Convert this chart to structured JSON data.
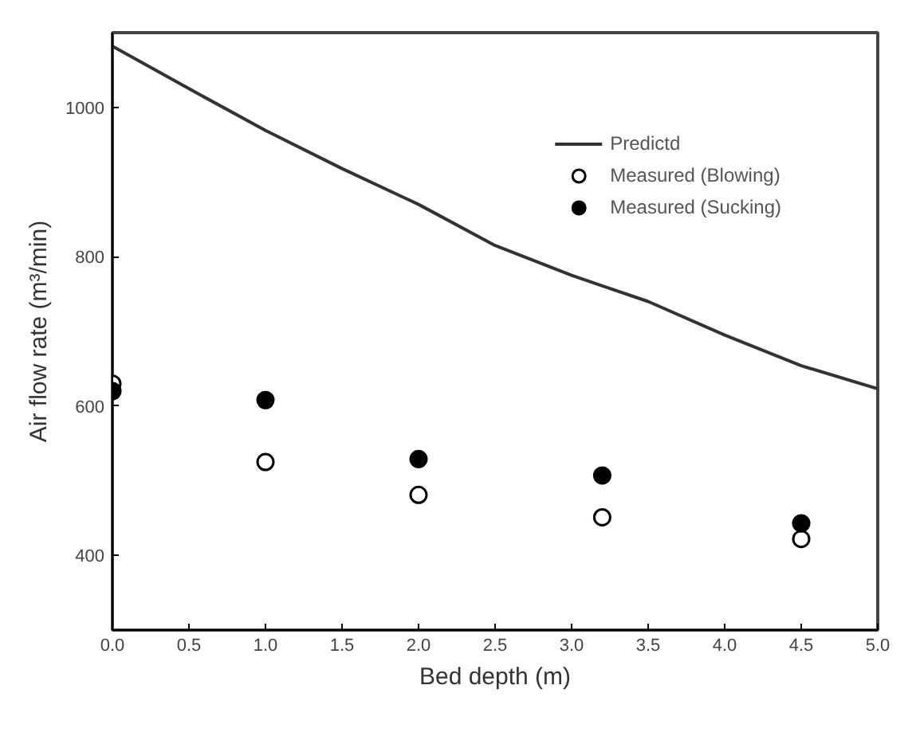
{
  "chart_data": {
    "type": "scatter",
    "xlabel": "Bed depth (m)",
    "ylabel": "Air flow rate (m³/min)",
    "xlim": [
      0,
      5
    ],
    "ylim": [
      300,
      1100
    ],
    "xticks": [
      {
        "value": 0,
        "label": "0.0"
      },
      {
        "value": 0.5,
        "label": "0.5"
      },
      {
        "value": 1,
        "label": "1.0"
      },
      {
        "value": 1.5,
        "label": "1.5"
      },
      {
        "value": 2,
        "label": "2.0"
      },
      {
        "value": 2.5,
        "label": "2.5"
      },
      {
        "value": 3,
        "label": "3.0"
      },
      {
        "value": 3.5,
        "label": "3.5"
      },
      {
        "value": 4,
        "label": "4.0"
      },
      {
        "value": 4.5,
        "label": "4.5"
      },
      {
        "value": 5,
        "label": "5.0"
      }
    ],
    "yticks": [
      400,
      600,
      800,
      1000
    ],
    "grid": false,
    "legend": "top right",
    "series": [
      {
        "name": "Predictd",
        "type": "line",
        "color": "#333333",
        "marker": "none",
        "line_style": "solid",
        "x": [
          0,
          0.5,
          1,
          1.5,
          2,
          2.5,
          3,
          3.2,
          3.5,
          4,
          4.5,
          5
        ],
        "values": [
          1082,
          1025,
          969,
          918,
          870,
          815,
          775,
          761,
          740,
          695,
          654,
          623
        ]
      },
      {
        "name": "Measured (Blowing)",
        "color": "#ffffff",
        "marker": "circle",
        "x": [
          0,
          1,
          2,
          3.2,
          4.5
        ],
        "values": [
          630,
          525,
          481,
          451,
          422
        ]
      },
      {
        "name": "Measured (Sucking)",
        "color": "#000000",
        "marker": "circle",
        "x": [
          0,
          1,
          2,
          3.2,
          4.5
        ],
        "values": [
          620,
          608,
          529,
          507,
          443
        ]
      }
    ]
  }
}
